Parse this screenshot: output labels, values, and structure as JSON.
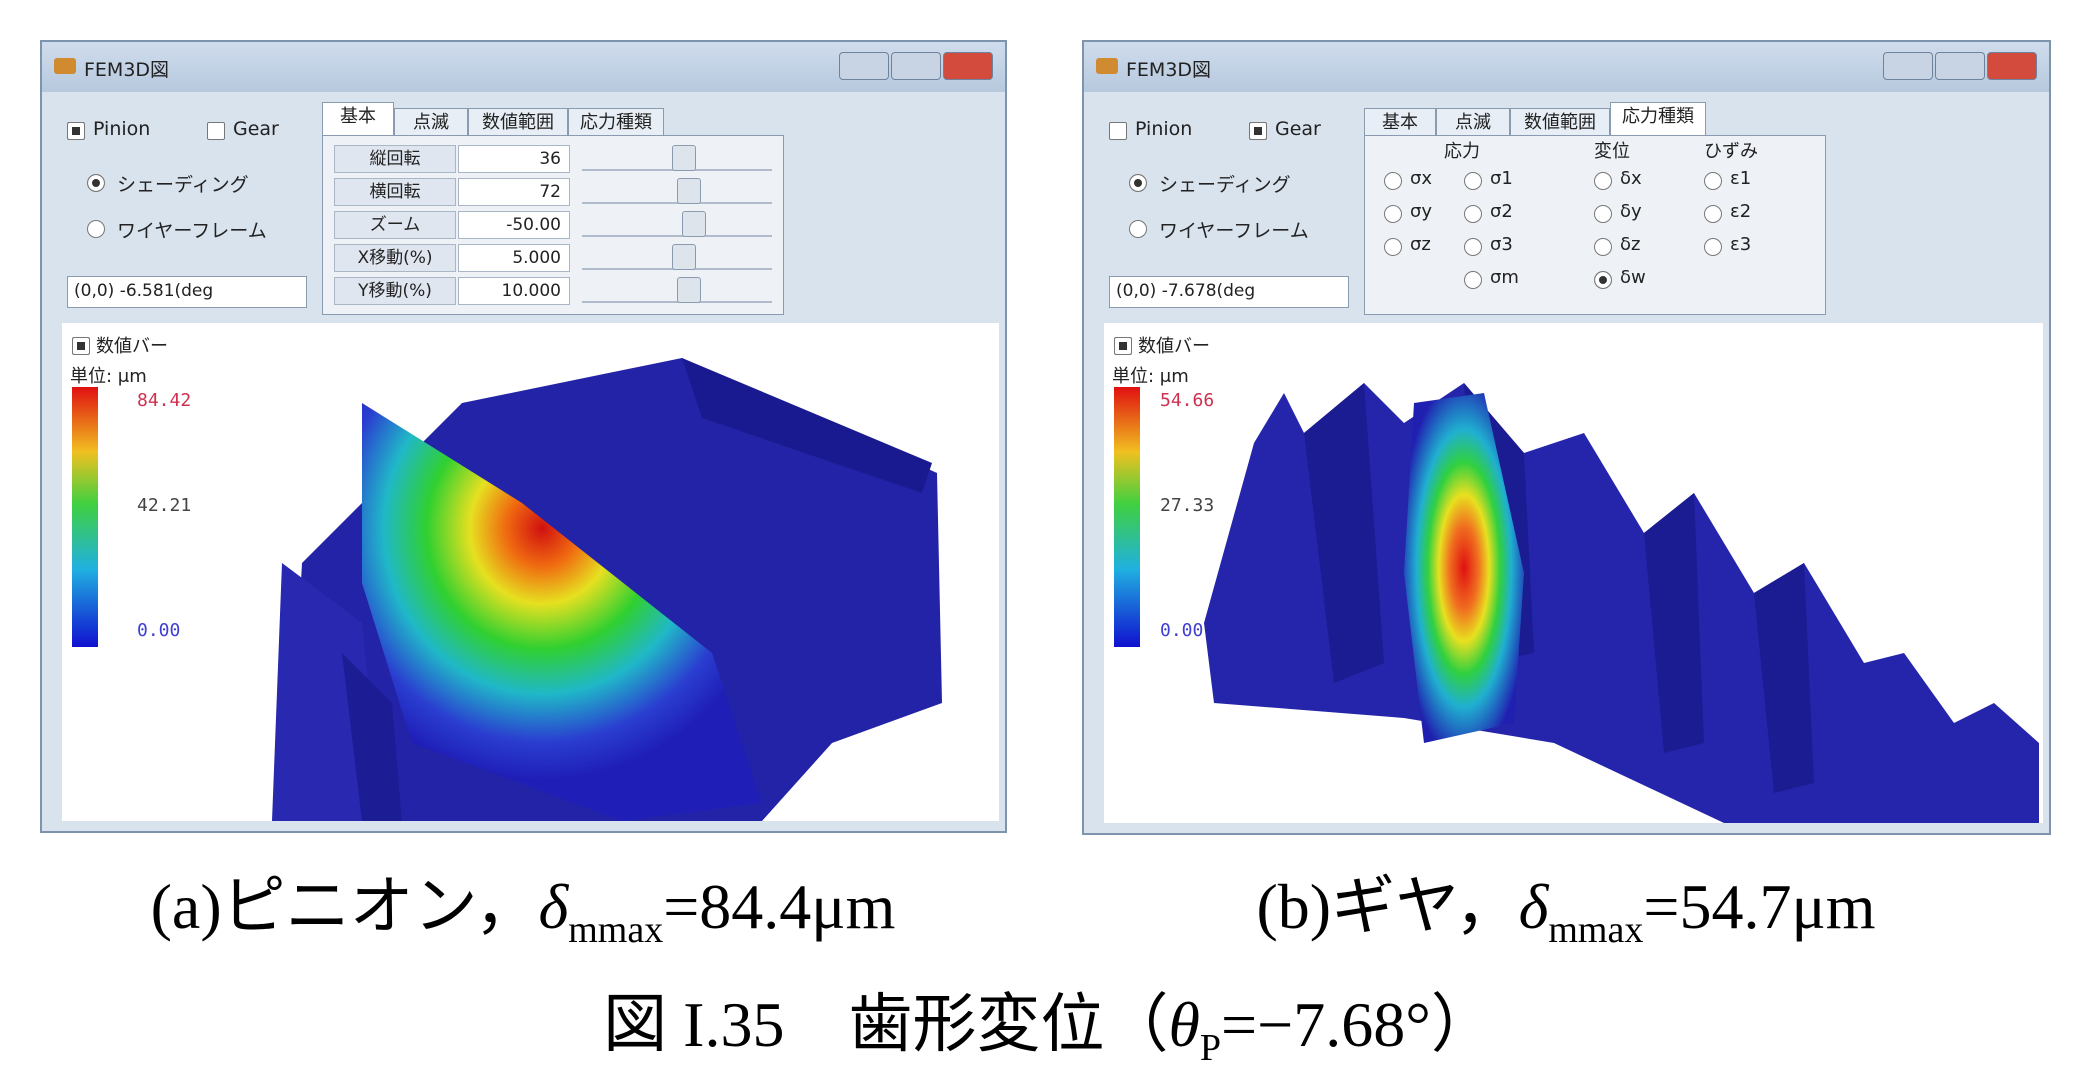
{
  "windows": [
    {
      "title": "FEM3D図",
      "checkboxes": [
        {
          "label": "Pinion",
          "checked": true
        },
        {
          "label": "Gear",
          "checked": false
        }
      ],
      "radios": [
        {
          "label": "シェーディング",
          "selected": true
        },
        {
          "label": "ワイヤーフレーム",
          "selected": false
        }
      ],
      "dropdown": "(0,0)    -6.581(deg",
      "tabs": [
        {
          "label": "基本",
          "active": true
        },
        {
          "label": "点滅",
          "active": false
        },
        {
          "label": "数値範囲",
          "active": false
        },
        {
          "label": "応力種類",
          "active": false
        }
      ],
      "params": [
        {
          "label": "縦回転",
          "value": "36"
        },
        {
          "label": "横回転",
          "value": "72"
        },
        {
          "label": "ズーム",
          "value": "-50.00"
        },
        {
          "label": "X移動(%)",
          "value": "5.000"
        },
        {
          "label": "Y移動(%)",
          "value": "10.000"
        }
      ],
      "value_bar": "数値バー",
      "unit": "単位: μm",
      "scale_labels": [
        "84.42",
        "42.21",
        "0.00"
      ]
    },
    {
      "title": "FEM3D図",
      "checkboxes": [
        {
          "label": "Pinion",
          "checked": false
        },
        {
          "label": "Gear",
          "checked": true
        }
      ],
      "radios": [
        {
          "label": "シェーディング",
          "selected": true
        },
        {
          "label": "ワイヤーフレーム",
          "selected": false
        }
      ],
      "dropdown": "(0,0)    -7.678(deg",
      "tabs": [
        {
          "label": "基本",
          "active": false
        },
        {
          "label": "点滅",
          "active": false
        },
        {
          "label": "数値範囲",
          "active": false
        },
        {
          "label": "応力種類",
          "active": true
        }
      ],
      "stress_groups": [
        {
          "title": "応力",
          "columns": [
            [
              {
                "label": "σx",
                "selected": false
              },
              {
                "label": "σy",
                "selected": false
              },
              {
                "label": "σz",
                "selected": false
              }
            ],
            [
              {
                "label": "σ1",
                "selected": false
              },
              {
                "label": "σ2",
                "selected": false
              },
              {
                "label": "σ3",
                "selected": false
              },
              {
                "label": "σm",
                "selected": false
              }
            ]
          ]
        },
        {
          "title": "変位",
          "columns": [
            [
              {
                "label": "δx",
                "selected": false
              },
              {
                "label": "δy",
                "selected": false
              },
              {
                "label": "δz",
                "selected": false
              },
              {
                "label": "δw",
                "selected": true
              }
            ]
          ]
        },
        {
          "title": "ひずみ",
          "columns": [
            [
              {
                "label": "ε1",
                "selected": false
              },
              {
                "label": "ε2",
                "selected": false
              },
              {
                "label": "ε3",
                "selected": false
              }
            ]
          ]
        }
      ],
      "value_bar": "数値バー",
      "unit": "単位: μm",
      "scale_labels": [
        "54.66",
        "27.33",
        "0.00"
      ]
    }
  ],
  "captions": [
    {
      "prefix": "(a)ピニオン，",
      "symbol": "δ",
      "sub": "mmax",
      "suffix": "=84.4μm"
    },
    {
      "prefix": "(b)ギヤ，",
      "symbol": "δ",
      "sub": "mmax",
      "suffix": "=54.7μm"
    }
  ],
  "figure_caption": {
    "number": "図 I.35",
    "text": "歯形変位（",
    "symbol": "θ",
    "sub": "P",
    "suffix": "=−7.68°）"
  }
}
